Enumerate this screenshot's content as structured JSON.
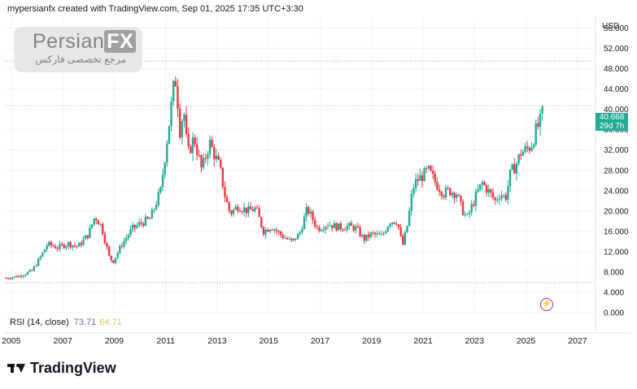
{
  "header": {
    "caption": "mypersianfx created with TradingView.com, Sep 01, 2025 17:35 UTC+3:30"
  },
  "watermark": {
    "brand": "Persian",
    "brand_fx": "FX",
    "subtitle": "مرجع تخصصی فارکس"
  },
  "axis": {
    "currency": "USD"
  },
  "price_tag": {
    "price": "40.668",
    "countdown": "29d 7h"
  },
  "rsi": {
    "label": "RSI (14, close)",
    "value1": "73.71",
    "value2": "64.71"
  },
  "footer": {
    "brand": "TradingView"
  },
  "colors": {
    "up": "#22ab94",
    "down": "#f23645",
    "grid": "#f0f3fa",
    "ref_line": "#9598a1",
    "price_line": "#f7a6ad"
  },
  "chart_data": {
    "type": "candlestick",
    "title": "",
    "y_ticks": [
      0,
      4,
      8,
      12,
      16,
      20,
      24,
      28,
      32,
      36,
      40,
      44,
      48,
      52,
      56
    ],
    "y_tick_labels": [
      "0.000",
      "4.000",
      "8.000",
      "12.000",
      "16.000",
      "20.000",
      "24.000",
      "28.000",
      "32.000",
      "36.000",
      "40.000",
      "44.000",
      "48.000",
      "52.000",
      "56.000"
    ],
    "x_ticks": [
      2005,
      2007,
      2009,
      2011,
      2013,
      2015,
      2017,
      2019,
      2021,
      2023,
      2025,
      2027
    ],
    "x_tick_labels": [
      "2005",
      "2007",
      "2009",
      "2011",
      "2013",
      "2015",
      "2017",
      "2019",
      "2021",
      "2023",
      "2025",
      "2027"
    ],
    "ylim": [
      0,
      58
    ],
    "xlim": [
      2004.75,
      2027.7
    ],
    "reference_lines": [
      49.5,
      5.9
    ],
    "last_price": 40.668,
    "price_path": [
      [
        2004.8,
        6.8
      ],
      [
        2005.3,
        7.2
      ],
      [
        2005.8,
        8.2
      ],
      [
        2006.2,
        11.5
      ],
      [
        2006.4,
        13.5
      ],
      [
        2006.8,
        12.8
      ],
      [
        2007.2,
        13.6
      ],
      [
        2007.6,
        13.0
      ],
      [
        2008.0,
        15.5
      ],
      [
        2008.25,
        19.0
      ],
      [
        2008.5,
        17.0
      ],
      [
        2008.8,
        11.0
      ],
      [
        2008.95,
        10.0
      ],
      [
        2009.3,
        13.5
      ],
      [
        2009.7,
        16.5
      ],
      [
        2010.0,
        17.5
      ],
      [
        2010.4,
        18.5
      ],
      [
        2010.8,
        24.0
      ],
      [
        2010.95,
        30.0
      ],
      [
        2011.1,
        36.0
      ],
      [
        2011.3,
        44.0
      ],
      [
        2011.4,
        46.0
      ],
      [
        2011.55,
        36.0
      ],
      [
        2011.7,
        40.0
      ],
      [
        2011.85,
        31.0
      ],
      [
        2012.1,
        34.5
      ],
      [
        2012.4,
        28.0
      ],
      [
        2012.7,
        33.5
      ],
      [
        2012.9,
        31.0
      ],
      [
        2013.1,
        28.5
      ],
      [
        2013.3,
        23.0
      ],
      [
        2013.5,
        19.5
      ],
      [
        2013.8,
        21.0
      ],
      [
        2014.2,
        20.0
      ],
      [
        2014.5,
        20.5
      ],
      [
        2014.8,
        16.0
      ],
      [
        2015.1,
        17.0
      ],
      [
        2015.5,
        15.2
      ],
      [
        2015.9,
        13.9
      ],
      [
        2016.2,
        15.5
      ],
      [
        2016.5,
        20.5
      ],
      [
        2016.9,
        16.5
      ],
      [
        2017.3,
        17.5
      ],
      [
        2017.7,
        16.8
      ],
      [
        2018.1,
        17.0
      ],
      [
        2018.4,
        16.6
      ],
      [
        2018.7,
        14.4
      ],
      [
        2019.0,
        15.5
      ],
      [
        2019.4,
        15.0
      ],
      [
        2019.7,
        18.0
      ],
      [
        2020.0,
        18.0
      ],
      [
        2020.2,
        13.0
      ],
      [
        2020.4,
        17.5
      ],
      [
        2020.6,
        24.5
      ],
      [
        2020.75,
        26.0
      ],
      [
        2021.0,
        27.0
      ],
      [
        2021.2,
        28.0
      ],
      [
        2021.5,
        25.5
      ],
      [
        2021.8,
        23.5
      ],
      [
        2022.0,
        24.0
      ],
      [
        2022.3,
        23.5
      ],
      [
        2022.5,
        20.5
      ],
      [
        2022.7,
        18.5
      ],
      [
        2022.9,
        21.0
      ],
      [
        2023.1,
        23.5
      ],
      [
        2023.3,
        25.5
      ],
      [
        2023.6,
        23.5
      ],
      [
        2023.8,
        22.0
      ],
      [
        2024.0,
        23.5
      ],
      [
        2024.2,
        22.5
      ],
      [
        2024.4,
        27.5
      ],
      [
        2024.6,
        29.0
      ],
      [
        2024.8,
        31.5
      ],
      [
        2025.0,
        32.0
      ],
      [
        2025.2,
        33.0
      ],
      [
        2025.4,
        36.0
      ],
      [
        2025.55,
        37.5
      ],
      [
        2025.67,
        40.668
      ]
    ]
  }
}
